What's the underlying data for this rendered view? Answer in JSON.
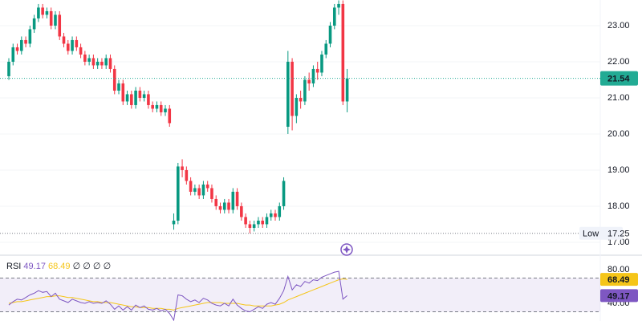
{
  "chart_data": [
    {
      "type": "candlestick",
      "color_up": "#089981",
      "color_down": "#f23645",
      "last_price_color": "#22ab94",
      "ylim": [
        16.71,
        23.71
      ],
      "yticks": [
        {
          "value": 17,
          "label": "17.00"
        },
        {
          "value": 18,
          "label": "18.00"
        },
        {
          "value": 19,
          "label": "19.00"
        },
        {
          "value": 20,
          "label": "20.00"
        },
        {
          "value": 21,
          "label": "21.00"
        },
        {
          "value": 22,
          "label": "22.00"
        },
        {
          "value": 23,
          "label": "23.00"
        }
      ],
      "grid": true,
      "low_label": "Low",
      "open": [
        21.6,
        22.0,
        22.4,
        22.3,
        22.6,
        22.5,
        22.9,
        23.2,
        23.5,
        23.3,
        23.4,
        23.0,
        23.3,
        22.7,
        22.5,
        22.3,
        22.6,
        22.4,
        22.2,
        22.0,
        22.1,
        21.9,
        22.0,
        21.9,
        22.1,
        21.8,
        21.2,
        21.4,
        20.9,
        21.1,
        20.8,
        21.2,
        21.0,
        21.1,
        20.8,
        20.7,
        20.8,
        20.6,
        20.7,
        17.5,
        17.6,
        19.1,
        19.0,
        18.7,
        18.4,
        18.5,
        18.3,
        18.6,
        18.5,
        18.2,
        18.0,
        17.9,
        18.1,
        17.9,
        18.4,
        18.0,
        17.7,
        17.5,
        17.4,
        17.5,
        17.6,
        17.5,
        17.7,
        17.8,
        17.7,
        18.0,
        20.2,
        22.0,
        20.5,
        21.0,
        20.9,
        21.5,
        21.4,
        21.8,
        21.7,
        22.2,
        22.5,
        23.0,
        23.5,
        23.6,
        20.9
      ],
      "high": [
        22.1,
        22.5,
        22.5,
        22.7,
        22.7,
        23.0,
        23.3,
        23.6,
        23.6,
        23.5,
        23.5,
        23.4,
        23.4,
        22.8,
        22.6,
        22.7,
        22.7,
        22.5,
        22.3,
        22.2,
        22.2,
        22.1,
        22.1,
        22.2,
        22.2,
        21.9,
        21.5,
        21.5,
        21.2,
        21.2,
        21.3,
        21.3,
        21.2,
        21.2,
        20.9,
        20.9,
        20.9,
        20.8,
        20.8,
        17.8,
        19.2,
        19.3,
        19.1,
        18.8,
        18.6,
        18.6,
        18.7,
        18.7,
        18.6,
        18.3,
        18.1,
        18.2,
        18.2,
        18.5,
        18.5,
        18.1,
        17.8,
        17.6,
        17.6,
        17.7,
        17.7,
        17.8,
        17.9,
        17.9,
        18.1,
        18.8,
        22.3,
        22.1,
        21.1,
        21.2,
        21.6,
        21.7,
        21.9,
        22.0,
        22.3,
        22.6,
        23.1,
        23.6,
        23.7,
        23.7,
        21.8
      ],
      "low": [
        21.5,
        21.9,
        22.2,
        22.2,
        22.4,
        22.4,
        22.8,
        23.1,
        23.2,
        23.2,
        22.9,
        22.9,
        22.6,
        22.4,
        22.2,
        22.2,
        22.3,
        22.1,
        21.9,
        21.9,
        21.8,
        21.8,
        21.8,
        21.8,
        21.7,
        21.1,
        21.1,
        20.8,
        20.8,
        20.7,
        20.7,
        20.9,
        20.9,
        20.7,
        20.6,
        20.6,
        20.5,
        20.5,
        20.2,
        17.35,
        17.5,
        18.8,
        18.6,
        18.3,
        18.3,
        18.2,
        18.2,
        18.4,
        18.1,
        17.9,
        17.8,
        17.8,
        17.8,
        17.8,
        17.9,
        17.6,
        17.4,
        17.25,
        17.3,
        17.4,
        17.4,
        17.4,
        17.6,
        17.6,
        17.6,
        17.9,
        20.0,
        20.1,
        20.3,
        20.7,
        20.8,
        21.2,
        21.3,
        21.5,
        21.6,
        22.1,
        22.4,
        22.9,
        23.3,
        20.8,
        20.6
      ],
      "close": [
        22.0,
        22.4,
        22.3,
        22.6,
        22.5,
        22.9,
        23.2,
        23.5,
        23.3,
        23.4,
        23.0,
        23.3,
        22.7,
        22.5,
        22.3,
        22.6,
        22.4,
        22.2,
        22.0,
        22.1,
        21.9,
        22.0,
        21.9,
        22.1,
        21.8,
        21.2,
        21.4,
        20.9,
        21.1,
        20.8,
        21.2,
        21.0,
        21.1,
        20.8,
        20.7,
        20.8,
        20.6,
        20.7,
        20.3,
        17.6,
        19.1,
        19.0,
        18.7,
        18.4,
        18.5,
        18.3,
        18.6,
        18.5,
        18.2,
        18.0,
        17.9,
        18.1,
        17.9,
        18.4,
        18.0,
        17.7,
        17.5,
        17.4,
        17.5,
        17.6,
        17.5,
        17.7,
        17.8,
        17.7,
        18.0,
        18.7,
        22.0,
        20.5,
        21.0,
        20.9,
        21.5,
        21.4,
        21.8,
        21.7,
        22.2,
        22.5,
        23.0,
        23.5,
        23.6,
        20.9,
        21.54
      ]
    },
    {
      "type": "rsi",
      "title": "RSI",
      "legend_extras": [
        "∅",
        "∅",
        "∅",
        "∅"
      ],
      "color": "#7e57c2",
      "ma_color": "#f5c518",
      "band_color": "#7e57c2",
      "band": [
        30,
        70
      ],
      "ylim": [
        19.05,
        93.33
      ],
      "yticks": [
        {
          "value": 40,
          "label": "40.00"
        },
        {
          "value": 80,
          "label": "80.00"
        }
      ],
      "rsi": [
        38,
        42,
        45,
        44,
        47,
        50,
        52,
        55,
        53,
        54,
        48,
        52,
        45,
        43,
        41,
        45,
        43,
        41,
        40,
        42,
        40,
        41,
        40,
        43,
        39,
        33,
        37,
        32,
        36,
        32,
        38,
        35,
        37,
        33,
        32,
        34,
        31,
        33,
        28,
        20,
        50,
        49,
        45,
        42,
        44,
        41,
        46,
        44,
        40,
        38,
        37,
        40,
        37,
        45,
        38,
        34,
        31,
        30,
        33,
        36,
        34,
        39,
        41,
        39,
        46,
        55,
        72,
        56,
        62,
        60,
        66,
        64,
        68,
        67,
        71,
        73,
        75,
        77,
        78,
        45,
        49.17
      ],
      "rsi_ma": [
        40,
        41,
        42,
        42,
        43,
        44,
        45,
        46,
        47,
        48,
        48,
        49,
        49,
        48,
        47,
        47,
        46,
        45,
        44,
        43,
        42,
        42,
        41,
        41,
        41,
        40,
        39,
        38,
        37,
        36,
        36,
        35,
        35,
        35,
        34,
        34,
        34,
        33,
        33,
        32,
        34,
        35,
        36,
        37,
        38,
        39,
        40,
        41,
        41,
        41,
        41,
        40,
        40,
        40,
        40,
        39,
        38,
        38,
        37,
        37,
        37,
        37,
        37,
        38,
        39,
        41,
        44,
        46,
        48,
        50,
        52,
        54,
        56,
        58,
        60,
        62,
        64,
        66,
        68,
        69,
        68.49
      ]
    }
  ]
}
